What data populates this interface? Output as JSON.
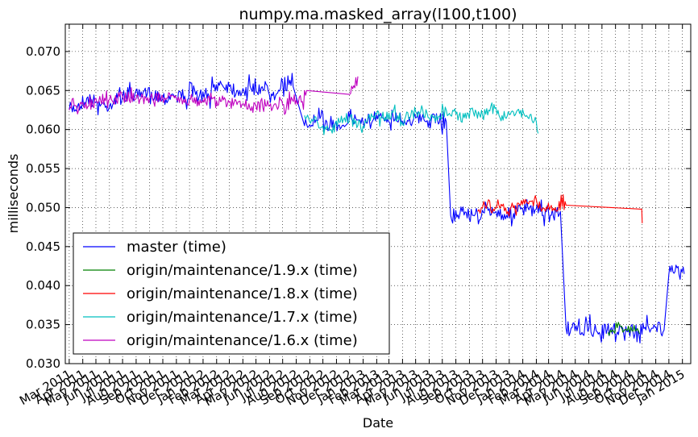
{
  "chart_data": {
    "type": "line",
    "title": "numpy.ma.masked_array(l100,t100)",
    "xlabel": "Date",
    "ylabel": "milliseconds",
    "ylim": [
      0.03,
      0.0735
    ],
    "xlim": [
      "2011-02-20",
      "2015-01-20"
    ],
    "grid": true,
    "legend_position": "bottom-left",
    "x_tick_labels": [
      "Mar 2011",
      "Apr 2011",
      "May 2011",
      "Jun 2011",
      "Jul 2011",
      "Aug 2011",
      "Sep 2011",
      "Oct 2011",
      "Nov 2011",
      "Dec 2011",
      "Jan 2012",
      "Feb 2012",
      "Mar 2012",
      "Apr 2012",
      "May 2012",
      "Jun 2012",
      "Jul 2012",
      "Aug 2012",
      "Sep 2012",
      "Oct 2012",
      "Nov 2012",
      "Dec 2012",
      "Jan 2013",
      "Feb 2013",
      "Mar 2013",
      "Apr 2013",
      "May 2013",
      "Jun 2013",
      "Jul 2013",
      "Aug 2013",
      "Sep 2013",
      "Oct 2013",
      "Nov 2013",
      "Dec 2013",
      "Jan 2014",
      "Feb 2014",
      "Mar 2014",
      "Apr 2014",
      "May 2014",
      "Jun 2014",
      "Jul 2014",
      "Aug 2014",
      "Sep 2014",
      "Oct 2014",
      "Nov 2014",
      "Dec 2014",
      "Jan 2015"
    ],
    "y_ticks": [
      "0.030",
      "0.035",
      "0.040",
      "0.045",
      "0.050",
      "0.055",
      "0.060",
      "0.065",
      "0.070"
    ],
    "series": [
      {
        "name": "master (time)",
        "color": "#0000ff",
        "x": [
          "2011-03-01",
          "2011-03-20",
          "2011-04-10",
          "2011-05-01",
          "2011-05-25",
          "2011-06-20",
          "2011-07-15",
          "2011-08-10",
          "2011-09-05",
          "2011-10-01",
          "2011-10-25",
          "2011-11-20",
          "2011-12-15",
          "2012-01-10",
          "2012-02-05",
          "2012-03-01",
          "2012-03-25",
          "2012-04-20",
          "2012-05-15",
          "2012-06-10",
          "2012-07-01",
          "2012-07-25",
          "2012-08-20",
          "2012-09-15",
          "2012-10-10",
          "2012-11-05",
          "2012-12-01",
          "2012-12-25",
          "2013-01-20",
          "2013-02-15",
          "2013-03-10",
          "2013-04-05",
          "2013-05-01",
          "2013-05-25",
          "2013-06-20",
          "2013-07-10",
          "2013-07-20",
          "2013-08-15",
          "2013-09-10",
          "2013-10-05",
          "2013-11-01",
          "2013-11-25",
          "2013-12-20",
          "2014-01-15",
          "2014-02-10",
          "2014-03-05",
          "2014-03-28",
          "2014-04-10",
          "2014-05-05",
          "2014-06-01",
          "2014-06-25",
          "2014-07-20",
          "2014-08-15",
          "2014-09-10",
          "2014-10-05",
          "2014-10-28",
          "2014-11-20",
          "2014-12-01",
          "2014-12-15",
          "2015-01-05"
        ],
        "values": [
          0.0625,
          0.063,
          0.064,
          0.0635,
          0.063,
          0.064,
          0.0645,
          0.0642,
          0.0648,
          0.064,
          0.0645,
          0.0643,
          0.0645,
          0.064,
          0.066,
          0.0655,
          0.065,
          0.0652,
          0.0655,
          0.0648,
          0.066,
          0.0655,
          0.0605,
          0.0612,
          0.061,
          0.0605,
          0.0615,
          0.0612,
          0.0608,
          0.0615,
          0.0618,
          0.0612,
          0.0615,
          0.061,
          0.0612,
          0.061,
          0.049,
          0.0495,
          0.049,
          0.0493,
          0.0495,
          0.049,
          0.0495,
          0.0497,
          0.0495,
          0.049,
          0.0495,
          0.0345,
          0.0342,
          0.0345,
          0.034,
          0.0343,
          0.0345,
          0.034,
          0.0345,
          0.035,
          0.0343,
          0.0415,
          0.0418,
          0.0415
        ]
      },
      {
        "name": "origin/maintenance/1.9.x (time)",
        "color": "#008000",
        "x": [
          "2014-07-15",
          "2014-07-25",
          "2014-08-05",
          "2014-08-15",
          "2014-08-25",
          "2014-09-05",
          "2014-09-15",
          "2014-09-25"
        ],
        "values": [
          0.034,
          0.0343,
          0.0346,
          0.0348,
          0.0344,
          0.0347,
          0.0342,
          0.0338
        ]
      },
      {
        "name": "origin/maintenance/1.8.x (time)",
        "color": "#ff0000",
        "x": [
          "2013-09-20",
          "2013-10-01",
          "2013-10-12",
          "2013-10-25",
          "2013-11-05",
          "2013-11-15",
          "2013-11-28",
          "2013-12-10",
          "2014-01-05",
          "2014-02-01",
          "2014-02-15",
          "2014-03-05",
          "2014-04-10",
          "2014-09-30",
          "2014-10-01"
        ],
        "values": [
          0.0495,
          0.05,
          0.0505,
          0.0498,
          0.051,
          0.0502,
          0.0495,
          0.05,
          0.0505,
          0.051,
          0.0498,
          0.05,
          0.0503,
          0.0498,
          0.048
        ]
      },
      {
        "name": "origin/maintenance/1.7.x (time)",
        "color": "#00bfbf",
        "x": [
          "2012-08-20",
          "2012-09-10",
          "2012-10-01",
          "2012-10-20",
          "2012-11-10",
          "2012-12-01",
          "2012-12-20",
          "2013-01-10",
          "2013-02-01",
          "2013-02-20",
          "2013-03-10",
          "2013-03-30",
          "2013-04-20",
          "2013-05-10",
          "2013-06-01",
          "2013-06-20",
          "2013-07-10",
          "2013-08-01",
          "2013-08-20",
          "2013-09-10",
          "2013-10-01",
          "2013-10-20",
          "2013-11-10",
          "2013-12-01",
          "2013-12-20",
          "2014-01-10",
          "2014-02-01",
          "2014-02-05"
        ],
        "values": [
          0.0618,
          0.0612,
          0.0605,
          0.06,
          0.061,
          0.0615,
          0.0605,
          0.061,
          0.062,
          0.0615,
          0.0622,
          0.061,
          0.0618,
          0.062,
          0.0615,
          0.0612,
          0.0625,
          0.062,
          0.0615,
          0.0622,
          0.0618,
          0.063,
          0.0615,
          0.062,
          0.0625,
          0.0618,
          0.061,
          0.0595
        ]
      },
      {
        "name": "origin/maintenance/1.6.x (time)",
        "color": "#bf00bf",
        "x": [
          "2011-03-01",
          "2011-03-10",
          "2011-03-20",
          "2011-04-01",
          "2011-04-15",
          "2011-05-01",
          "2011-06-01",
          "2011-07-01",
          "2011-08-01",
          "2011-09-01",
          "2011-10-01",
          "2011-11-01",
          "2011-12-01",
          "2012-01-01",
          "2012-02-01",
          "2012-03-01",
          "2012-04-01",
          "2012-05-01",
          "2012-06-01",
          "2012-07-01",
          "2012-08-01",
          "2012-08-15",
          "2012-08-25",
          "2012-12-01",
          "2012-12-20"
        ],
        "values": [
          0.0625,
          0.064,
          0.062,
          0.0635,
          0.063,
          0.064,
          0.0638,
          0.0642,
          0.064,
          0.064,
          0.064,
          0.064,
          0.0638,
          0.0638,
          0.0637,
          0.0635,
          0.0633,
          0.063,
          0.063,
          0.0632,
          0.0638,
          0.0636,
          0.065,
          0.0645,
          0.0668
        ]
      }
    ]
  }
}
